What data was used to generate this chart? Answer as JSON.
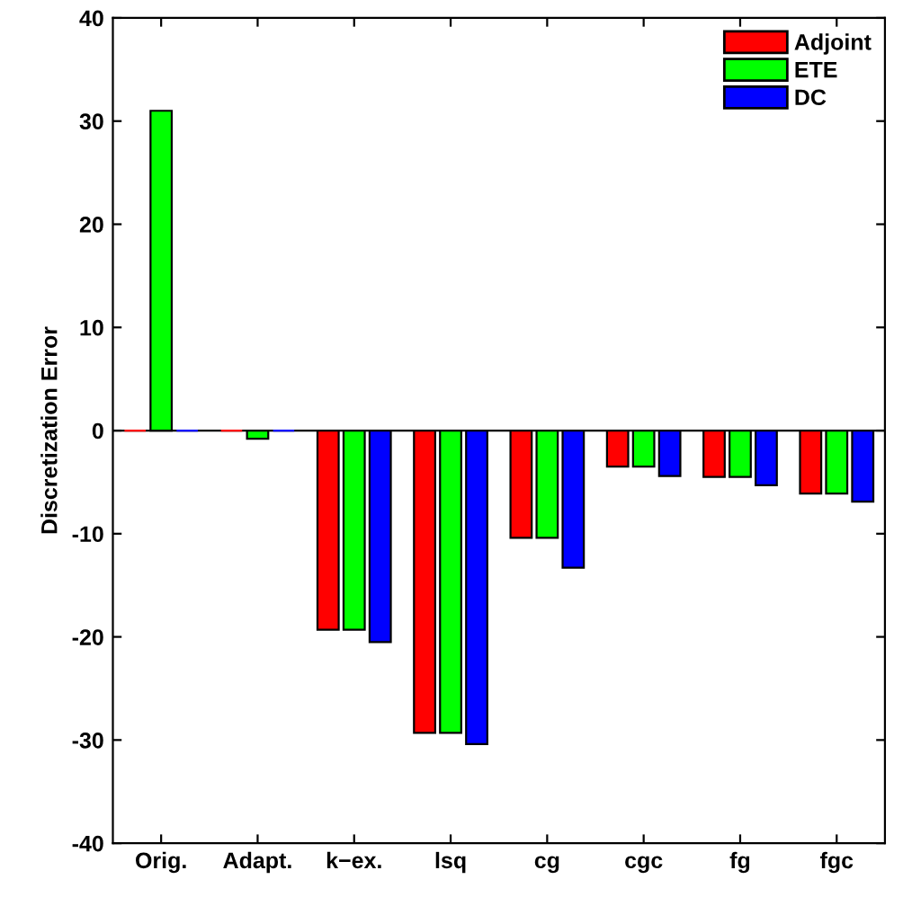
{
  "chart_data": {
    "type": "bar",
    "ylabel": "Discretization Error",
    "categories": [
      "Orig.",
      "Adapt.",
      "k−ex.",
      "lsq",
      "cg",
      "cgc",
      "fg",
      "fgc"
    ],
    "series": [
      {
        "name": "Adjoint",
        "color": "#ff0000",
        "values": [
          0,
          0,
          -19.3,
          -29.3,
          -10.4,
          -3.5,
          -4.5,
          -6.1
        ]
      },
      {
        "name": "ETE",
        "color": "#00ff00",
        "values": [
          31,
          -0.8,
          -19.3,
          -29.3,
          -10.4,
          -3.5,
          -4.5,
          -6.1
        ]
      },
      {
        "name": "DC",
        "color": "#0000ff",
        "values": [
          0,
          0,
          -20.5,
          -30.4,
          -13.3,
          -4.4,
          -5.3,
          -6.9
        ]
      }
    ],
    "ylim": [
      -40,
      40
    ],
    "yticks": [
      -40,
      -30,
      -20,
      -10,
      0,
      10,
      20,
      30,
      40
    ],
    "ref_lines": [
      {
        "axis": "y",
        "value": 0,
        "color": "#000000"
      }
    ],
    "legend": "top right",
    "grid": false
  }
}
